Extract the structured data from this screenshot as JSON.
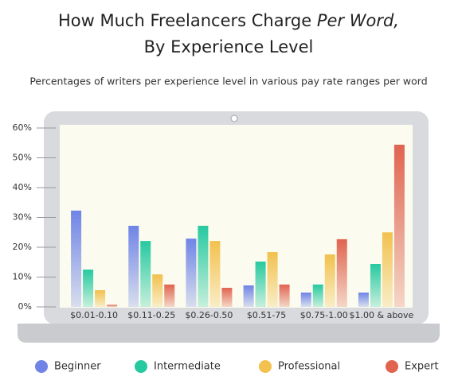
{
  "chart_data": {
    "type": "bar",
    "title": [
      "How Much Freelancers Charge",
      "Per Word,",
      "By Experience Level"
    ],
    "subtitle": "Percentages of writers per experience level in various pay rate ranges per word",
    "categories": [
      "$0.01-0.10",
      "$0.11-0.25",
      "$0.26-0.50",
      "$0.51-75",
      "$0.75-1.00",
      "$1.00 & above"
    ],
    "series": [
      {
        "name": "Beginner",
        "color": "#6f84e6",
        "values": [
          32.3,
          27.2,
          22.9,
          7.2,
          4.8,
          4.8
        ]
      },
      {
        "name": "Intermediate",
        "color": "#27c9a0",
        "values": [
          12.5,
          22.1,
          27.2,
          15.2,
          7.5,
          14.4
        ]
      },
      {
        "name": "Professional",
        "color": "#f2c14e",
        "values": [
          5.6,
          10.9,
          22.1,
          18.4,
          17.6,
          25
        ]
      },
      {
        "name": "Expert",
        "color": "#e06450",
        "values": [
          0.7,
          7.5,
          6.4,
          7.5,
          22.7,
          54.4
        ]
      }
    ],
    "ylim": [
      0,
      60
    ],
    "yticks": [
      {
        "value": 0,
        "label": "0%"
      },
      {
        "value": 10,
        "label": "10%"
      },
      {
        "value": 20,
        "label": "20%"
      },
      {
        "value": 30,
        "label": "30%"
      },
      {
        "value": 40,
        "label": "40%"
      },
      {
        "value": 50,
        "label": "50%"
      },
      {
        "value": 60,
        "label": "60%"
      }
    ]
  }
}
